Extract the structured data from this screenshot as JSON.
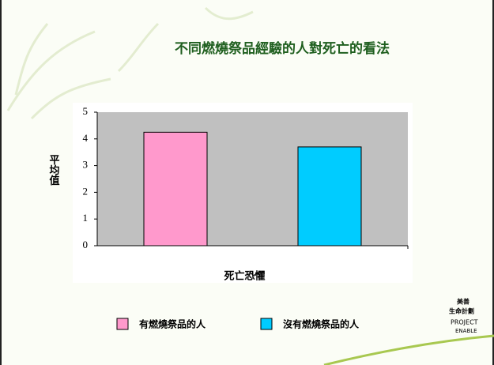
{
  "chart_data": {
    "type": "bar",
    "title": "不同燃燒祭品經驗的人對死亡的看法",
    "y_label": "平均值",
    "categories": [
      "死亡恐懼"
    ],
    "series": [
      {
        "name": "有燃燒祭品的人",
        "color": "#ff99cc",
        "values": [
          4.25
        ]
      },
      {
        "name": "沒有燃燒祭品的人",
        "color": "#00ccff",
        "values": [
          3.7
        ]
      }
    ],
    "ylim": [
      0,
      5
    ],
    "yticks": [
      0,
      1,
      2,
      3,
      4,
      5
    ],
    "plot_background": "#c0c0c0"
  },
  "logo": {
    "lines": [
      "美善",
      "生命計劃",
      "PROJECT",
      "ENABLE"
    ]
  }
}
